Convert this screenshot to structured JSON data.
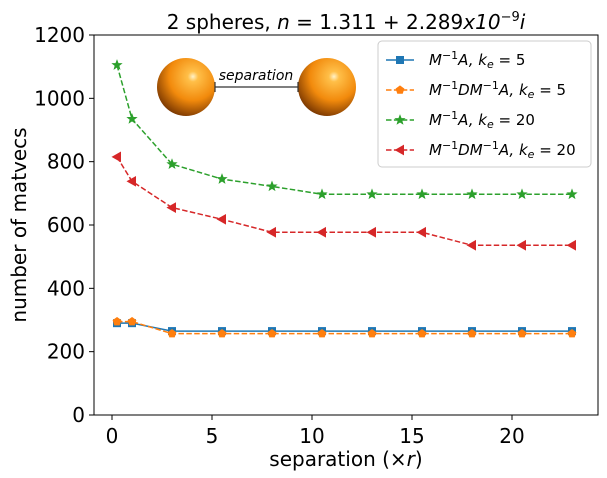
{
  "chart_data": {
    "type": "line",
    "title": "2 spheres, n = 1.311 + 2.289x10⁻⁹i",
    "title_parts": {
      "prefix": "2 spheres, ",
      "n": "n",
      "eq": " = 1.311 + 2.289",
      "x10": "x10",
      "exp": "−9",
      "i": "i"
    },
    "xlabel": "separation (×r)",
    "xlabel_parts": {
      "main": "separation (×",
      "r": "r",
      "close": ")"
    },
    "ylabel": "number of matvecs",
    "xlim": [
      -0.9,
      24.3
    ],
    "ylim": [
      0,
      1200
    ],
    "xticks": [
      0,
      5,
      10,
      15,
      20
    ],
    "yticks": [
      0,
      200,
      400,
      600,
      800,
      1000,
      1200
    ],
    "x": [
      0.25,
      1,
      3,
      5.5,
      8,
      10.5,
      13,
      15.5,
      18,
      20.5,
      23
    ],
    "grid": false,
    "legend_position": "top-right",
    "series": [
      {
        "name": "M⁻¹A, kₑ = 5",
        "legend": {
          "base": "M",
          "sup": "−1",
          "mid": "A, ",
          "k": "k",
          "sub": "e",
          "val": " = 5"
        },
        "color": "#1f77b4",
        "linestyle": "solid",
        "marker": "square",
        "values": [
          290,
          290,
          265,
          265,
          265,
          265,
          265,
          265,
          265,
          265,
          265
        ]
      },
      {
        "name": "M⁻¹DM⁻¹A, kₑ = 5",
        "legend": {
          "base": "M",
          "sup": "−1",
          "mid": "DM",
          "sup2": "−1",
          "mid2": "A, ",
          "k": "k",
          "sub": "e",
          "val": " = 5"
        },
        "color": "#ff7f0e",
        "linestyle": "dashed",
        "marker": "pentagon",
        "values": [
          295,
          295,
          257,
          257,
          257,
          257,
          257,
          257,
          257,
          257,
          257
        ]
      },
      {
        "name": "M⁻¹A, kₑ = 20",
        "legend": {
          "base": "M",
          "sup": "−1",
          "mid": "A, ",
          "k": "k",
          "sub": "e",
          "val": " = 20"
        },
        "color": "#2ca02c",
        "linestyle": "dashed",
        "marker": "star",
        "values": [
          1105,
          935,
          792,
          745,
          722,
          697,
          697,
          697,
          697,
          697,
          697
        ]
      },
      {
        "name": "M⁻¹DM⁻¹A, kₑ = 20",
        "legend": {
          "base": "M",
          "sup": "−1",
          "mid": "DM",
          "sup2": "−1",
          "mid2": "A, ",
          "k": "k",
          "sub": "e",
          "val": " = 20"
        },
        "color": "#d62728",
        "linestyle": "dashed",
        "marker": "triangle-left",
        "values": [
          815,
          738,
          655,
          618,
          577,
          577,
          577,
          577,
          536,
          536,
          536
        ]
      }
    ],
    "inset": {
      "label": "separation",
      "content": "two orange spheres joined by a double-headed arrow"
    }
  },
  "colors": {
    "sphere_light": "#ffb347",
    "sphere_mid": "#f28a0c",
    "sphere_dark": "#8a3d00"
  }
}
